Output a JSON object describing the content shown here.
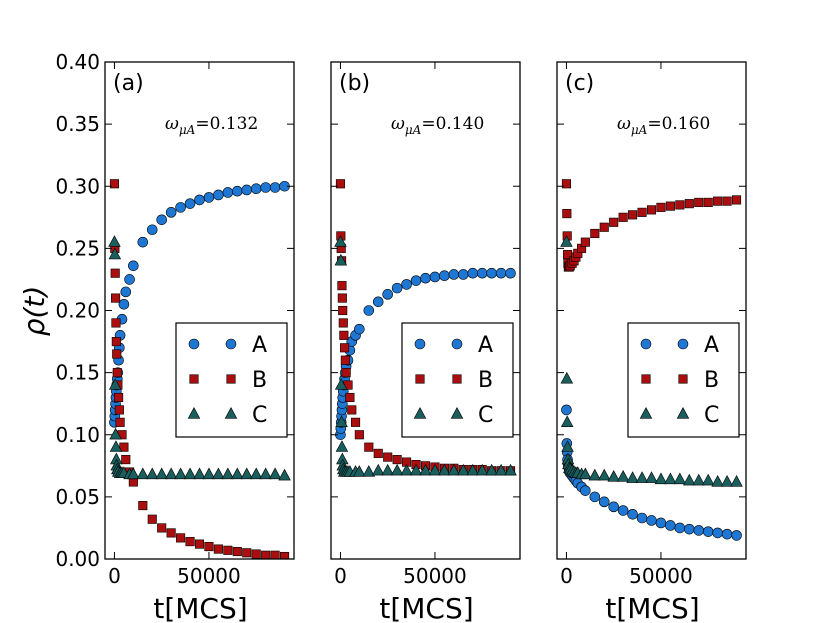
{
  "figure": {
    "ylabel": "ρ(t)"
  },
  "chart_data": [
    {
      "type": "scatter",
      "panel_label": "(a)",
      "annotation": {
        "symbol": "ω",
        "subscript": "μA",
        "equals": "=",
        "value": "0.132"
      },
      "xlabel": "t[MCS]",
      "ylabel": "ρ(t)",
      "xlim": [
        -5000,
        95000
      ],
      "ylim": [
        0,
        0.4
      ],
      "x_ticks": [
        0,
        50000
      ],
      "x_tick_labels": [
        "0",
        "50000"
      ],
      "y_ticks": [
        0,
        0.05,
        0.1,
        0.15,
        0.2,
        0.25,
        0.3,
        0.35,
        0.4
      ],
      "y_tick_labels": [
        "0.00",
        "0.05",
        "0.10",
        "0.15",
        "0.20",
        "0.25",
        "0.30",
        "0.35",
        "0.40"
      ],
      "legend_position": "right",
      "series": [
        {
          "name": "A",
          "marker": "circle",
          "color": "#1f77d4",
          "x": [
            0,
            200,
            400,
            600,
            800,
            1000,
            1200,
            1500,
            1800,
            2200,
            2600,
            3000,
            4000,
            5000,
            6000,
            8000,
            10000,
            15000,
            20000,
            25000,
            30000,
            35000,
            40000,
            45000,
            50000,
            55000,
            60000,
            65000,
            70000,
            75000,
            80000,
            85000,
            90000
          ],
          "y": [
            0.11,
            0.115,
            0.12,
            0.125,
            0.13,
            0.135,
            0.14,
            0.145,
            0.15,
            0.16,
            0.17,
            0.18,
            0.193,
            0.205,
            0.215,
            0.225,
            0.236,
            0.255,
            0.265,
            0.273,
            0.279,
            0.283,
            0.286,
            0.289,
            0.291,
            0.293,
            0.295,
            0.296,
            0.297,
            0.298,
            0.299,
            0.299,
            0.3
          ]
        },
        {
          "name": "B",
          "marker": "square",
          "color": "#aa0e0e",
          "x": [
            0,
            200,
            400,
            600,
            800,
            1000,
            1200,
            1500,
            1800,
            2200,
            2600,
            3000,
            4000,
            5000,
            6000,
            8000,
            10000,
            15000,
            20000,
            25000,
            30000,
            35000,
            40000,
            45000,
            50000,
            55000,
            60000,
            65000,
            70000,
            75000,
            80000,
            85000,
            90000
          ],
          "y": [
            0.302,
            0.25,
            0.23,
            0.21,
            0.19,
            0.175,
            0.165,
            0.15,
            0.14,
            0.13,
            0.12,
            0.11,
            0.1,
            0.09,
            0.08,
            0.07,
            0.062,
            0.043,
            0.032,
            0.025,
            0.021,
            0.017,
            0.014,
            0.012,
            0.01,
            0.008,
            0.007,
            0.006,
            0.005,
            0.004,
            0.003,
            0.003,
            0.002
          ]
        },
        {
          "name": "C",
          "marker": "triangle",
          "color": "#1a5e5e",
          "x": [
            0,
            200,
            400,
            600,
            800,
            1000,
            1200,
            1500,
            2000,
            3000,
            4000,
            5000,
            8000,
            10000,
            15000,
            20000,
            25000,
            30000,
            35000,
            40000,
            45000,
            50000,
            55000,
            60000,
            65000,
            70000,
            75000,
            80000,
            85000,
            90000
          ],
          "y": [
            0.255,
            0.245,
            0.14,
            0.1,
            0.09,
            0.08,
            0.075,
            0.072,
            0.07,
            0.069,
            0.069,
            0.069,
            0.068,
            0.068,
            0.068,
            0.068,
            0.068,
            0.068,
            0.068,
            0.068,
            0.068,
            0.068,
            0.068,
            0.068,
            0.068,
            0.068,
            0.068,
            0.068,
            0.068,
            0.067
          ]
        }
      ]
    },
    {
      "type": "scatter",
      "panel_label": "(b)",
      "annotation": {
        "symbol": "ω",
        "subscript": "μA",
        "equals": "=",
        "value": "0.140"
      },
      "xlabel": "t[MCS]",
      "xlim": [
        -5000,
        95000
      ],
      "ylim": [
        0,
        0.4
      ],
      "x_ticks": [
        0,
        50000
      ],
      "x_tick_labels": [
        "0",
        "50000"
      ],
      "legend_position": "right",
      "series": [
        {
          "name": "A",
          "marker": "circle",
          "color": "#1f77d4",
          "x": [
            0,
            200,
            400,
            600,
            800,
            1000,
            1200,
            1500,
            1800,
            2200,
            2600,
            3000,
            4000,
            5000,
            6000,
            8000,
            10000,
            15000,
            20000,
            25000,
            30000,
            35000,
            40000,
            45000,
            50000,
            55000,
            60000,
            65000,
            70000,
            75000,
            80000,
            85000,
            90000
          ],
          "y": [
            0.1,
            0.105,
            0.11,
            0.115,
            0.12,
            0.125,
            0.13,
            0.135,
            0.14,
            0.145,
            0.15,
            0.155,
            0.16,
            0.168,
            0.175,
            0.18,
            0.185,
            0.2,
            0.207,
            0.213,
            0.218,
            0.221,
            0.224,
            0.226,
            0.227,
            0.228,
            0.229,
            0.229,
            0.23,
            0.23,
            0.23,
            0.23,
            0.23
          ]
        },
        {
          "name": "B",
          "marker": "square",
          "color": "#aa0e0e",
          "x": [
            0,
            200,
            400,
            600,
            800,
            1000,
            1200,
            1500,
            1800,
            2200,
            2600,
            3000,
            4000,
            5000,
            6000,
            8000,
            10000,
            15000,
            20000,
            25000,
            30000,
            35000,
            40000,
            45000,
            50000,
            55000,
            60000,
            65000,
            70000,
            75000,
            80000,
            85000,
            90000
          ],
          "y": [
            0.302,
            0.26,
            0.25,
            0.24,
            0.22,
            0.21,
            0.2,
            0.19,
            0.18,
            0.17,
            0.16,
            0.15,
            0.14,
            0.13,
            0.12,
            0.11,
            0.1,
            0.09,
            0.085,
            0.082,
            0.08,
            0.078,
            0.076,
            0.075,
            0.074,
            0.073,
            0.073,
            0.072,
            0.072,
            0.072,
            0.071,
            0.071,
            0.071
          ]
        },
        {
          "name": "C",
          "marker": "triangle",
          "color": "#1a5e5e",
          "x": [
            0,
            200,
            400,
            600,
            800,
            1000,
            1200,
            1500,
            2000,
            3000,
            4000,
            5000,
            8000,
            10000,
            15000,
            20000,
            25000,
            30000,
            35000,
            40000,
            45000,
            50000,
            55000,
            60000,
            65000,
            70000,
            75000,
            80000,
            85000,
            90000
          ],
          "y": [
            0.255,
            0.24,
            0.14,
            0.11,
            0.09,
            0.08,
            0.075,
            0.072,
            0.07,
            0.07,
            0.07,
            0.07,
            0.07,
            0.07,
            0.07,
            0.071,
            0.071,
            0.071,
            0.071,
            0.071,
            0.071,
            0.071,
            0.071,
            0.071,
            0.071,
            0.071,
            0.071,
            0.071,
            0.071,
            0.071
          ]
        }
      ]
    },
    {
      "type": "scatter",
      "panel_label": "(c)",
      "annotation": {
        "symbol": "ω",
        "subscript": "μA",
        "equals": "=",
        "value": "0.160"
      },
      "xlabel": "t[MCS]",
      "xlim": [
        -5000,
        95000
      ],
      "ylim": [
        0,
        0.4
      ],
      "x_ticks": [
        0,
        50000
      ],
      "x_tick_labels": [
        "0",
        "50000"
      ],
      "legend_position": "right",
      "series": [
        {
          "name": "A",
          "marker": "circle",
          "color": "#1f77d4",
          "x": [
            0,
            200,
            400,
            600,
            800,
            1000,
            1500,
            2000,
            3000,
            4000,
            5000,
            6000,
            8000,
            10000,
            15000,
            20000,
            25000,
            30000,
            35000,
            40000,
            45000,
            50000,
            55000,
            60000,
            65000,
            70000,
            75000,
            80000,
            85000,
            90000
          ],
          "y": [
            0.12,
            0.093,
            0.086,
            0.08,
            0.077,
            0.074,
            0.071,
            0.069,
            0.067,
            0.065,
            0.063,
            0.061,
            0.058,
            0.055,
            0.05,
            0.046,
            0.042,
            0.039,
            0.036,
            0.033,
            0.031,
            0.029,
            0.027,
            0.025,
            0.024,
            0.023,
            0.022,
            0.021,
            0.02,
            0.019
          ]
        },
        {
          "name": "B",
          "marker": "square",
          "color": "#aa0e0e",
          "x": [
            0,
            200,
            400,
            600,
            800,
            1000,
            1500,
            2000,
            3000,
            4000,
            5000,
            6000,
            8000,
            10000,
            15000,
            20000,
            25000,
            30000,
            35000,
            40000,
            45000,
            50000,
            55000,
            60000,
            65000,
            70000,
            75000,
            80000,
            85000,
            90000
          ],
          "y": [
            0.302,
            0.278,
            0.26,
            0.245,
            0.238,
            0.235,
            0.235,
            0.236,
            0.238,
            0.24,
            0.243,
            0.246,
            0.25,
            0.255,
            0.262,
            0.267,
            0.271,
            0.275,
            0.277,
            0.279,
            0.281,
            0.283,
            0.284,
            0.285,
            0.286,
            0.287,
            0.287,
            0.288,
            0.288,
            0.289
          ]
        },
        {
          "name": "C",
          "marker": "triangle",
          "color": "#1a5e5e",
          "x": [
            0,
            200,
            400,
            600,
            800,
            1000,
            1500,
            2000,
            3000,
            4000,
            5000,
            6000,
            8000,
            10000,
            15000,
            20000,
            25000,
            30000,
            35000,
            40000,
            45000,
            50000,
            55000,
            60000,
            65000,
            70000,
            75000,
            80000,
            85000,
            90000
          ],
          "y": [
            0.255,
            0.145,
            0.11,
            0.09,
            0.08,
            0.076,
            0.073,
            0.072,
            0.071,
            0.07,
            0.069,
            0.069,
            0.068,
            0.068,
            0.067,
            0.067,
            0.066,
            0.066,
            0.065,
            0.065,
            0.065,
            0.064,
            0.064,
            0.064,
            0.063,
            0.063,
            0.063,
            0.062,
            0.062,
            0.062
          ]
        }
      ]
    }
  ]
}
